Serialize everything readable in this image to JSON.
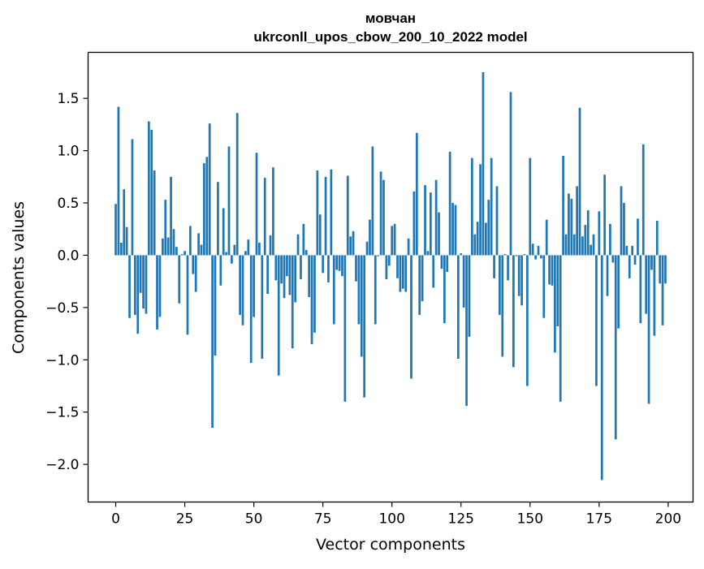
{
  "chart_data": {
    "type": "bar",
    "title_line1": "мовчан",
    "title_line2": "ukrconll_upos_cbow_200_10_2022 model",
    "xlabel": "Vector components",
    "ylabel": "Components values",
    "xlim": [
      -10,
      209
    ],
    "ylim": [
      -2.36,
      1.94
    ],
    "xticks": [
      0,
      25,
      50,
      75,
      100,
      125,
      150,
      175,
      200
    ],
    "xtick_labels": [
      "0",
      "25",
      "50",
      "75",
      "100",
      "125",
      "150",
      "175",
      "200"
    ],
    "yticks": [
      -2.0,
      -1.5,
      -1.0,
      -0.5,
      0.0,
      0.5,
      1.0,
      1.5
    ],
    "ytick_labels": [
      "−2.0",
      "−1.5",
      "−1.0",
      "−0.5",
      "0.0",
      "0.5",
      "1.0",
      "1.5"
    ],
    "bar_color": "#1f77b4",
    "grid": false,
    "values": [
      0.49,
      1.42,
      0.12,
      0.63,
      0.27,
      -0.6,
      1.11,
      -0.57,
      -0.75,
      -0.36,
      -0.51,
      -0.56,
      1.28,
      1.2,
      0.81,
      -0.71,
      -0.59,
      0.16,
      0.53,
      0.17,
      0.75,
      0.25,
      0.08,
      -0.46,
      0.01,
      0.04,
      -0.76,
      0.28,
      -0.18,
      -0.35,
      0.21,
      0.1,
      0.88,
      0.94,
      1.26,
      -1.65,
      -0.96,
      0.7,
      -0.29,
      0.45,
      0.03,
      1.04,
      -0.08,
      0.1,
      1.36,
      -0.57,
      -0.67,
      0.04,
      0.15,
      -1.03,
      -0.59,
      0.98,
      0.12,
      -0.99,
      0.74,
      -0.37,
      0.19,
      0.84,
      -0.24,
      -1.15,
      -0.27,
      -0.41,
      -0.2,
      -0.38,
      -0.89,
      -0.45,
      0.2,
      -0.23,
      0.3,
      0.05,
      -0.4,
      -0.85,
      -0.74,
      0.81,
      0.39,
      -0.17,
      0.75,
      -0.26,
      0.82,
      -0.66,
      -0.14,
      -0.15,
      -0.2,
      -1.4,
      0.76,
      0.18,
      0.23,
      -0.25,
      -0.66,
      -0.97,
      -1.36,
      0.13,
      0.34,
      1.04,
      -0.66,
      -0.01,
      0.8,
      0.72,
      -0.23,
      -0.1,
      0.28,
      0.3,
      -0.22,
      -0.35,
      -0.32,
      -0.35,
      0.16,
      -1.18,
      0.61,
      1.17,
      -0.57,
      -0.44,
      0.67,
      0.04,
      0.6,
      -0.31,
      0.72,
      0.41,
      -0.13,
      -0.65,
      -0.16,
      0.99,
      0.5,
      0.48,
      -0.99,
      0.02,
      -0.5,
      -1.44,
      -0.78,
      0.93,
      0.2,
      0.32,
      0.87,
      1.75,
      0.31,
      0.53,
      0.93,
      -0.22,
      0.66,
      -0.57,
      -0.97,
      0.01,
      -0.24,
      1.56,
      -1.07,
      -0.01,
      -0.39,
      -0.48,
      0.01,
      -1.25,
      0.93,
      0.11,
      -0.04,
      0.09,
      -0.03,
      -0.6,
      0.34,
      -0.28,
      -0.29,
      -0.93,
      -0.68,
      -1.4,
      0.95,
      0.2,
      0.59,
      0.54,
      0.2,
      0.66,
      1.41,
      0.18,
      0.29,
      0.43,
      0.1,
      0.2,
      -1.25,
      0.42,
      -2.15,
      0.77,
      -0.39,
      0.3,
      -0.07,
      -1.76,
      -0.7,
      0.66,
      0.5,
      0.09,
      -0.22,
      0.09,
      -0.09,
      0.35,
      -0.65,
      1.06,
      -0.56,
      -1.42,
      -0.14,
      -0.77,
      0.33,
      -0.27,
      -0.67,
      -0.27
    ]
  }
}
